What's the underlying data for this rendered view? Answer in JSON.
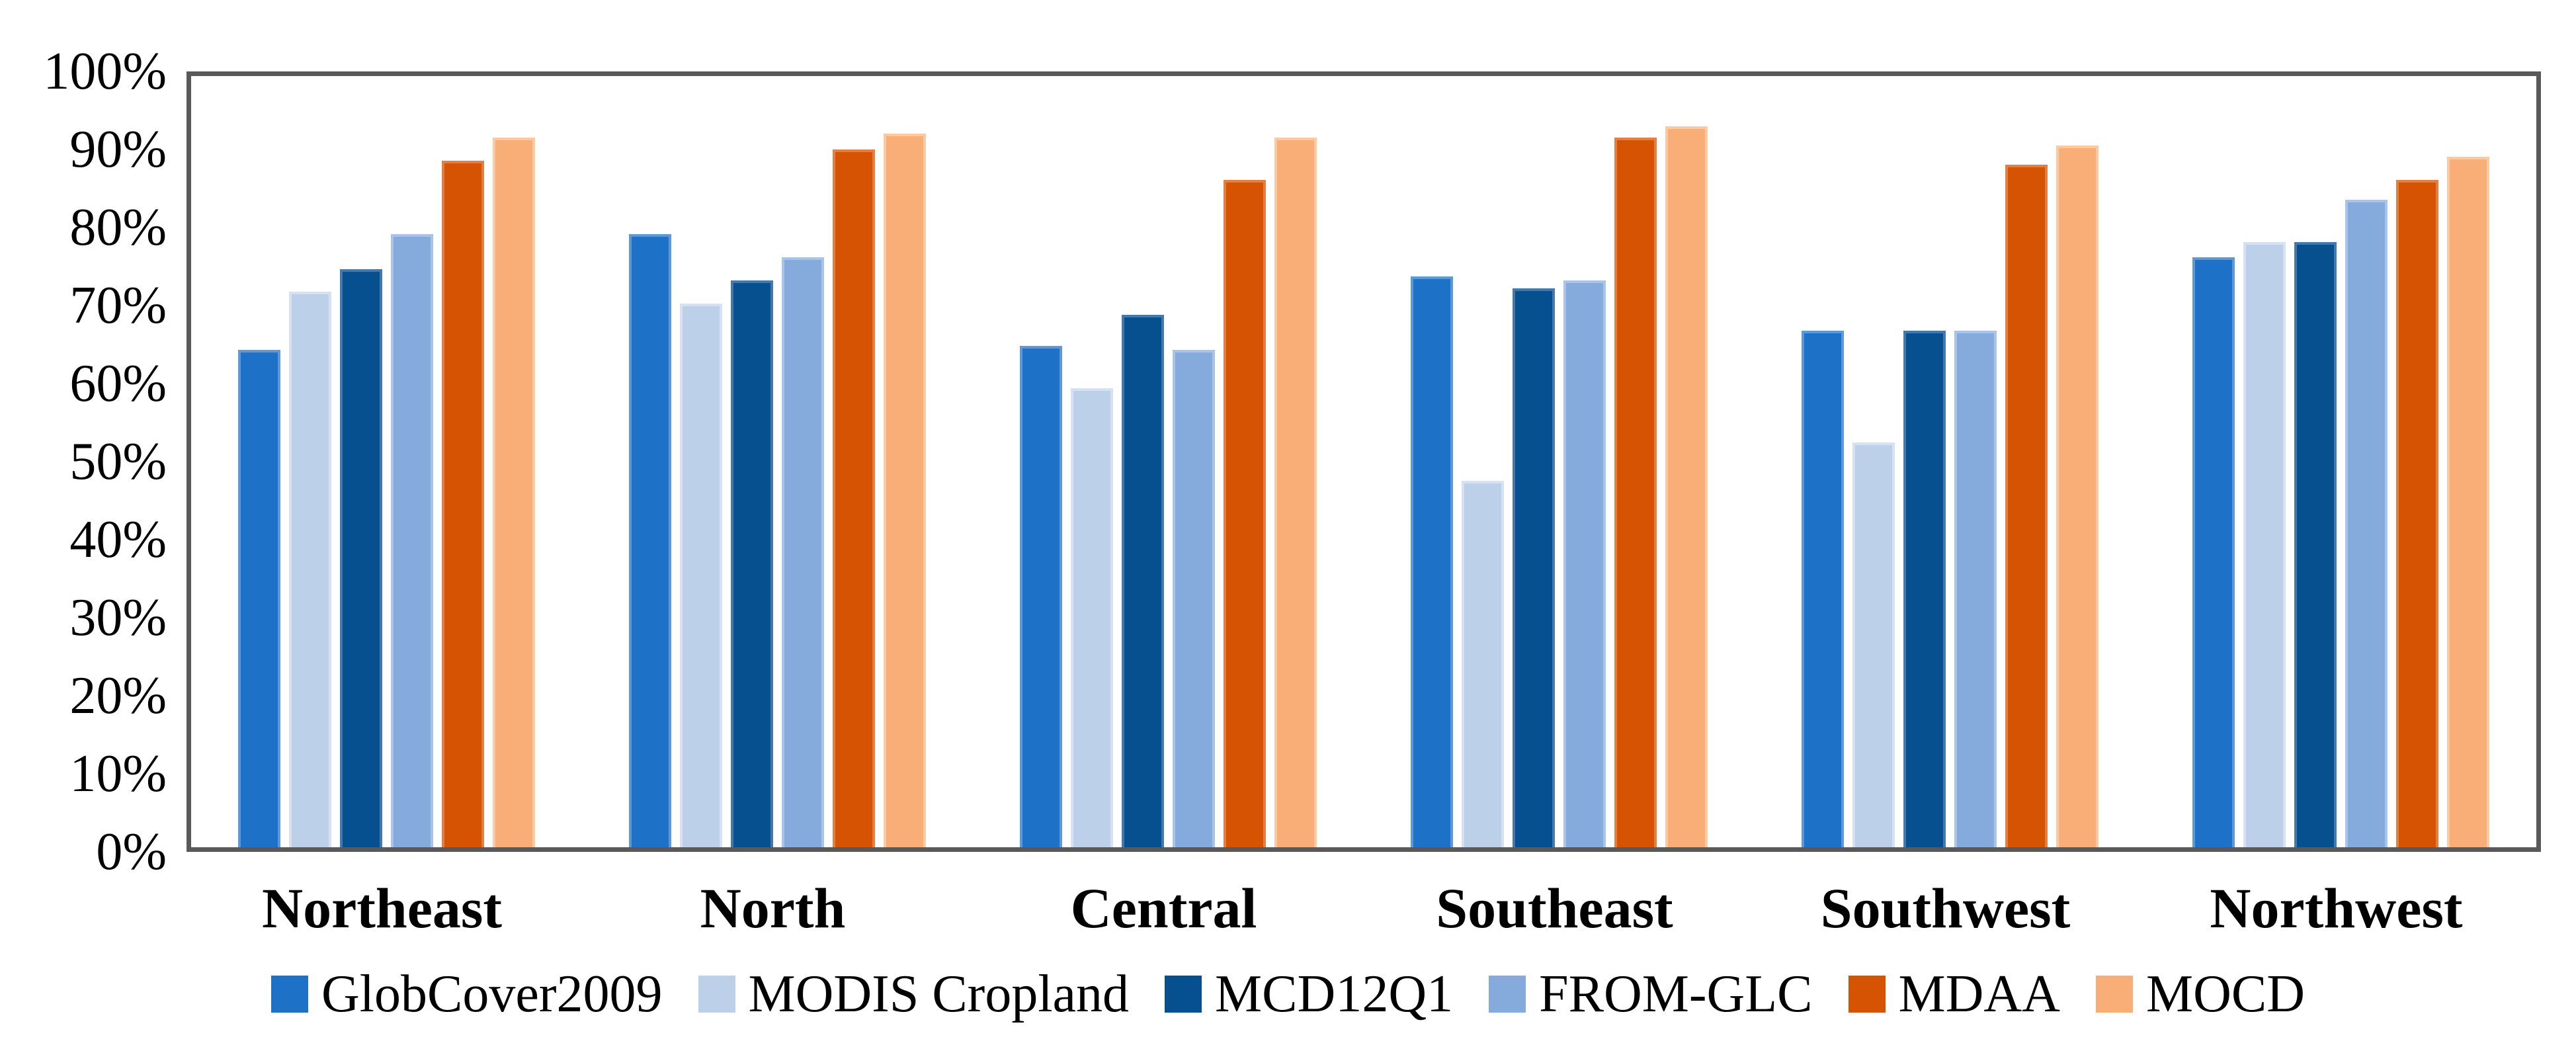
{
  "colors": {
    "axis_border": "#595959",
    "text": "#000000",
    "background": "#ffffff"
  },
  "chart_data": {
    "type": "bar",
    "title": "",
    "xlabel": "",
    "ylabel": "",
    "ylim": [
      0,
      100
    ],
    "y_tick_step": 10,
    "y_tick_labels": [
      "0%",
      "10%",
      "20%",
      "30%",
      "40%",
      "50%",
      "60%",
      "70%",
      "80%",
      "90%",
      "100%"
    ],
    "grid": false,
    "legend_position": "bottom",
    "categories": [
      "Northeast",
      "North",
      "Central",
      "Southeast",
      "Southwest",
      "Northwest"
    ],
    "series": [
      {
        "name": "GlobCover2009",
        "color": "#1d72c8",
        "edge": "#5d98d9",
        "values": [
          64.5,
          79.5,
          65.0,
          74.0,
          67.0,
          76.5
        ]
      },
      {
        "name": "MODIS Cropland",
        "color": "#bdd0ea",
        "edge": "#d6e2f3",
        "values": [
          72.0,
          70.5,
          59.5,
          47.5,
          52.5,
          78.5
        ]
      },
      {
        "name": "MCD12Q1",
        "color": "#07508f",
        "edge": "#4679ab",
        "values": [
          75.0,
          73.5,
          69.0,
          72.5,
          67.0,
          78.5
        ]
      },
      {
        "name": "FROM-GLC",
        "color": "#85aadc",
        "edge": "#a9c3e9",
        "values": [
          79.5,
          76.5,
          64.5,
          73.5,
          67.0,
          84.0
        ]
      },
      {
        "name": "MDAA",
        "color": "#d65304",
        "edge": "#e27f44",
        "values": [
          89.0,
          90.5,
          86.5,
          92.0,
          88.5,
          86.5
        ]
      },
      {
        "name": "MOCD",
        "color": "#f9ad77",
        "edge": "#fbc9a2",
        "values": [
          92.0,
          92.5,
          92.0,
          93.5,
          91.0,
          89.5
        ]
      }
    ]
  }
}
